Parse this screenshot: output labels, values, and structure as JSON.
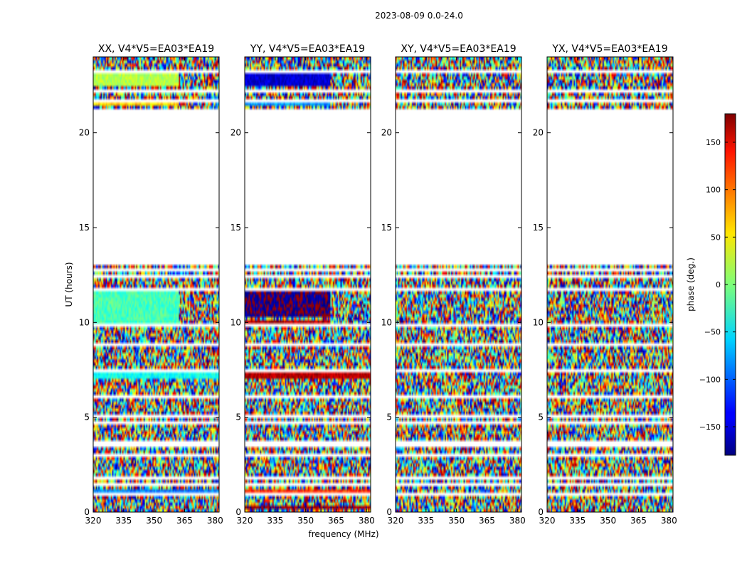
{
  "chart_data": {
    "type": "heatmap",
    "suptitle": "2023-08-09 0.0-24.0",
    "xlabel": "frequency (MHz)",
    "ylabel": "UT (hours)",
    "xlim": [
      320,
      382
    ],
    "ylim": [
      0,
      24
    ],
    "xticks": [
      320,
      335,
      350,
      365,
      380
    ],
    "xtick_labels": [
      "320",
      "335",
      "350",
      "365",
      "380"
    ],
    "yticks": [
      0,
      5,
      10,
      15,
      20
    ],
    "ytick_labels": [
      "0",
      "5",
      "10",
      "15",
      "20"
    ],
    "no_data_ut_range": [
      13.0,
      21.3
    ],
    "colorbar": {
      "label": "phase (deg.)",
      "range": [
        -180,
        180
      ],
      "colormap": "jet",
      "ticks": [
        150,
        100,
        50,
        0,
        -50,
        -100,
        -150
      ],
      "tick_labels": [
        "150",
        "100",
        "50",
        "0",
        "−50",
        "−100",
        "−150"
      ]
    },
    "panels": [
      {
        "title": "XX, V4*V5=EA03*EA19",
        "coherent_bands": [
          {
            "ut": [
              21.4,
              21.7
            ],
            "freq": [
              320,
              362
            ],
            "phase": 60
          },
          {
            "ut": [
              22.5,
              23.1
            ],
            "freq": [
              320,
              362
            ],
            "phase": 20
          },
          {
            "ut": [
              10.0,
              11.6
            ],
            "freq": [
              320,
              362
            ],
            "phase": -20
          },
          {
            "ut": [
              7.1,
              7.3
            ],
            "freq": [
              320,
              382
            ],
            "phase": -40
          },
          {
            "ut": [
              1.0,
              1.2
            ],
            "freq": [
              320,
              382
            ],
            "phase": -90
          }
        ]
      },
      {
        "title": "YY, V4*V5=EA03*EA19",
        "coherent_bands": [
          {
            "ut": [
              21.4,
              21.7
            ],
            "freq": [
              320,
              362
            ],
            "phase": -80
          },
          {
            "ut": [
              22.5,
              23.1
            ],
            "freq": [
              320,
              362
            ],
            "phase": -150
          },
          {
            "ut": [
              10.3,
              11.6
            ],
            "freq": [
              320,
              362
            ],
            "phase": -175
          },
          {
            "ut": [
              9.7,
              10.1
            ],
            "freq": [
              320,
              362
            ],
            "phase": 160
          },
          {
            "ut": [
              7.1,
              7.3
            ],
            "freq": [
              320,
              382
            ],
            "phase": 160
          },
          {
            "ut": [
              1.0,
              1.2
            ],
            "freq": [
              320,
              382
            ],
            "phase": 120
          },
          {
            "ut": [
              0.1,
              0.3
            ],
            "freq": [
              320,
              382
            ],
            "phase": 170
          }
        ]
      },
      {
        "title": "XY, V4*V5=EA03*EA19",
        "coherent_bands": []
      },
      {
        "title": "YX, V4*V5=EA03*EA19",
        "coherent_bands": []
      }
    ]
  }
}
